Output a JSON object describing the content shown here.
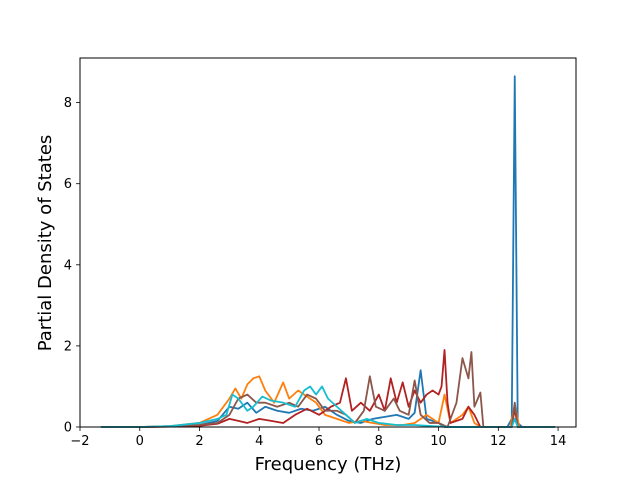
{
  "chart_data": {
    "type": "line",
    "title": "",
    "xlabel": "Frequency (THz)",
    "ylabel": "Partial Density of States",
    "xlim": [
      -2,
      14.6
    ],
    "ylim": [
      0,
      9.1
    ],
    "xticks": [
      -2,
      0,
      2,
      4,
      6,
      8,
      10,
      12,
      14
    ],
    "yticks": [
      0,
      2,
      4,
      6,
      8
    ],
    "grid": false,
    "legend": "none",
    "series": [
      {
        "color": "#1f77b4",
        "points": [
          [
            -1.3,
            0
          ],
          [
            0,
            0
          ],
          [
            1,
            0.02
          ],
          [
            2,
            0.05
          ],
          [
            2.6,
            0.15
          ],
          [
            3.0,
            0.5
          ],
          [
            3.3,
            0.45
          ],
          [
            3.6,
            0.6
          ],
          [
            3.9,
            0.35
          ],
          [
            4.2,
            0.5
          ],
          [
            4.6,
            0.4
          ],
          [
            5.0,
            0.35
          ],
          [
            5.4,
            0.45
          ],
          [
            5.8,
            0.4
          ],
          [
            6.2,
            0.5
          ],
          [
            6.6,
            0.3
          ],
          [
            7.0,
            0.15
          ],
          [
            7.4,
            0.1
          ],
          [
            7.8,
            0.2
          ],
          [
            8.2,
            0.25
          ],
          [
            8.6,
            0.3
          ],
          [
            9.0,
            0.2
          ],
          [
            9.2,
            0.35
          ],
          [
            9.4,
            1.4
          ],
          [
            9.6,
            0.2
          ],
          [
            10.0,
            0.1
          ],
          [
            10.2,
            0.0
          ],
          [
            11.0,
            0.0
          ],
          [
            12.3,
            0.0
          ],
          [
            12.45,
            0.2
          ],
          [
            12.55,
            8.65
          ],
          [
            12.65,
            0.1
          ],
          [
            12.8,
            0.0
          ],
          [
            13.9,
            0
          ]
        ]
      },
      {
        "color": "#ff7f0e",
        "points": [
          [
            -1.3,
            0
          ],
          [
            0,
            0
          ],
          [
            1,
            0.02
          ],
          [
            2,
            0.1
          ],
          [
            2.6,
            0.3
          ],
          [
            3.0,
            0.7
          ],
          [
            3.2,
            0.95
          ],
          [
            3.4,
            0.7
          ],
          [
            3.6,
            1.05
          ],
          [
            3.8,
            1.2
          ],
          [
            4.0,
            1.25
          ],
          [
            4.2,
            0.9
          ],
          [
            4.5,
            0.6
          ],
          [
            4.8,
            1.1
          ],
          [
            5.0,
            0.7
          ],
          [
            5.3,
            0.9
          ],
          [
            5.6,
            0.75
          ],
          [
            5.9,
            0.6
          ],
          [
            6.2,
            0.3
          ],
          [
            6.6,
            0.2
          ],
          [
            7.0,
            0.1
          ],
          [
            7.4,
            0.15
          ],
          [
            7.8,
            0.1
          ],
          [
            8.2,
            0.05
          ],
          [
            8.8,
            0.05
          ],
          [
            9.2,
            0.1
          ],
          [
            9.6,
            0.3
          ],
          [
            10.0,
            0.1
          ],
          [
            10.2,
            0.8
          ],
          [
            10.4,
            0.1
          ],
          [
            10.8,
            0.3
          ],
          [
            11.0,
            0.5
          ],
          [
            11.2,
            0.1
          ],
          [
            11.4,
            0.0
          ],
          [
            12.4,
            0.0
          ],
          [
            12.55,
            0.55
          ],
          [
            12.7,
            0.0
          ],
          [
            13.9,
            0
          ]
        ]
      },
      {
        "color": "#b22222",
        "points": [
          [
            -1.3,
            0
          ],
          [
            0,
            0
          ],
          [
            1,
            0.01
          ],
          [
            2,
            0.03
          ],
          [
            2.6,
            0.08
          ],
          [
            3.0,
            0.2
          ],
          [
            3.3,
            0.15
          ],
          [
            3.6,
            0.1
          ],
          [
            4.0,
            0.2
          ],
          [
            4.4,
            0.15
          ],
          [
            4.8,
            0.1
          ],
          [
            5.2,
            0.3
          ],
          [
            5.6,
            0.45
          ],
          [
            6.0,
            0.3
          ],
          [
            6.4,
            0.5
          ],
          [
            6.7,
            0.6
          ],
          [
            6.9,
            1.2
          ],
          [
            7.1,
            0.4
          ],
          [
            7.4,
            0.6
          ],
          [
            7.7,
            0.4
          ],
          [
            8.0,
            0.8
          ],
          [
            8.2,
            0.4
          ],
          [
            8.4,
            1.2
          ],
          [
            8.6,
            0.6
          ],
          [
            8.8,
            1.1
          ],
          [
            9.0,
            0.5
          ],
          [
            9.2,
            0.9
          ],
          [
            9.4,
            0.6
          ],
          [
            9.6,
            0.8
          ],
          [
            9.8,
            0.9
          ],
          [
            10.0,
            0.8
          ],
          [
            10.1,
            1.0
          ],
          [
            10.2,
            1.9
          ],
          [
            10.3,
            0.6
          ],
          [
            10.4,
            0.1
          ],
          [
            10.8,
            0.2
          ],
          [
            11.0,
            0.5
          ],
          [
            11.2,
            0.3
          ],
          [
            11.4,
            0.0
          ],
          [
            12.45,
            0.0
          ],
          [
            12.55,
            0.45
          ],
          [
            12.65,
            0.0
          ],
          [
            13.9,
            0
          ]
        ]
      },
      {
        "color": "#8c564b",
        "points": [
          [
            -1.3,
            0
          ],
          [
            0,
            0
          ],
          [
            1,
            0.01
          ],
          [
            2,
            0.05
          ],
          [
            2.6,
            0.1
          ],
          [
            3.0,
            0.3
          ],
          [
            3.3,
            0.7
          ],
          [
            3.6,
            0.8
          ],
          [
            3.9,
            0.6
          ],
          [
            4.2,
            0.6
          ],
          [
            4.6,
            0.5
          ],
          [
            5.0,
            0.6
          ],
          [
            5.3,
            0.5
          ],
          [
            5.6,
            0.8
          ],
          [
            5.9,
            0.7
          ],
          [
            6.2,
            0.4
          ],
          [
            6.6,
            0.4
          ],
          [
            6.9,
            0.3
          ],
          [
            7.2,
            0.1
          ],
          [
            7.5,
            0.4
          ],
          [
            7.7,
            1.25
          ],
          [
            7.9,
            0.5
          ],
          [
            8.2,
            0.4
          ],
          [
            8.5,
            0.7
          ],
          [
            8.7,
            0.4
          ],
          [
            9.0,
            0.3
          ],
          [
            9.2,
            1.15
          ],
          [
            9.4,
            0.3
          ],
          [
            9.7,
            0.1
          ],
          [
            10.0,
            0.1
          ],
          [
            10.3,
            0.0
          ],
          [
            10.6,
            0.6
          ],
          [
            10.8,
            1.7
          ],
          [
            11.0,
            1.2
          ],
          [
            11.1,
            1.85
          ],
          [
            11.2,
            0.5
          ],
          [
            11.4,
            0.85
          ],
          [
            11.5,
            0.0
          ],
          [
            12.45,
            0.0
          ],
          [
            12.55,
            0.6
          ],
          [
            12.65,
            0.0
          ],
          [
            13.9,
            0
          ]
        ]
      },
      {
        "color": "#17becf",
        "points": [
          [
            -1.3,
            0
          ],
          [
            0,
            0
          ],
          [
            1,
            0.02
          ],
          [
            2,
            0.1
          ],
          [
            2.6,
            0.2
          ],
          [
            2.9,
            0.3
          ],
          [
            3.1,
            0.8
          ],
          [
            3.3,
            0.7
          ],
          [
            3.6,
            0.4
          ],
          [
            3.8,
            0.5
          ],
          [
            4.1,
            0.75
          ],
          [
            4.4,
            0.65
          ],
          [
            4.8,
            0.6
          ],
          [
            5.2,
            0.5
          ],
          [
            5.5,
            0.9
          ],
          [
            5.7,
            1.0
          ],
          [
            5.9,
            0.8
          ],
          [
            6.1,
            1.0
          ],
          [
            6.3,
            0.7
          ],
          [
            6.6,
            0.5
          ],
          [
            6.9,
            0.3
          ],
          [
            7.2,
            0.1
          ],
          [
            7.6,
            0.2
          ],
          [
            8.0,
            0.1
          ],
          [
            8.6,
            0.05
          ],
          [
            9.2,
            0.05
          ],
          [
            9.8,
            0.02
          ],
          [
            10.4,
            0.0
          ],
          [
            12.45,
            0.0
          ],
          [
            12.55,
            0.2
          ],
          [
            12.65,
            0.0
          ],
          [
            13.9,
            0
          ]
        ]
      }
    ]
  }
}
